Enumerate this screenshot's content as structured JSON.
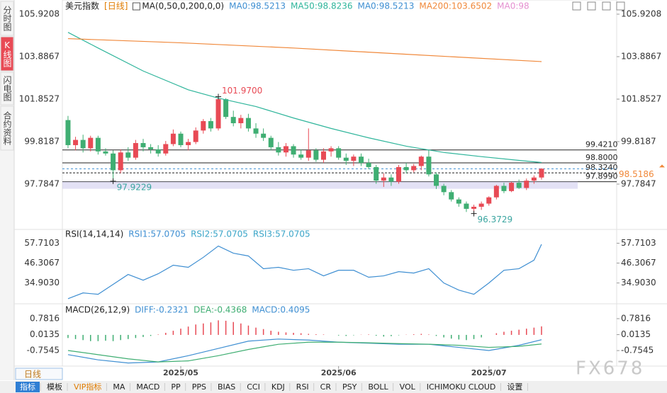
{
  "sidebar": {
    "tabs": [
      "分时图",
      "K线图",
      "闪电图",
      "合约资料"
    ],
    "active": 1
  },
  "period_label": "日线",
  "toolbar": {
    "items": [
      "指标",
      "模板",
      "VIP指标",
      "MA",
      "MACD",
      "PP",
      "PPS",
      "BIAS",
      "CCI",
      "KDJ",
      "RSI",
      "CR",
      "PSY",
      "BOLL",
      "VOL",
      "ICHIMOKU CLOUD",
      "设置"
    ],
    "active": 0,
    "vip": 2
  },
  "watermark": "FX678",
  "chart_data": [
    {
      "type": "candlestick",
      "title": "美元指数",
      "period": "[日线]",
      "indicator": "MA(0,50,0,200,0,0)",
      "legend": [
        {
          "text": "MA0:98.5213",
          "color": "#3f8fd2"
        },
        {
          "text": "MA50:98.8236",
          "color": "#2fb59b"
        },
        {
          "text": "MA0:98.5213",
          "color": "#3f8fd2"
        },
        {
          "text": "MA200:103.6502",
          "color": "#f0883a"
        },
        {
          "text": "MA0:98",
          "color": "#e58fd0"
        }
      ],
      "up_color": "#e84a55",
      "down_color": "#3fae72",
      "candles": [
        [
          100.85,
          101.05,
          99.5,
          99.65
        ],
        [
          99.65,
          100.05,
          99.4,
          99.9
        ],
        [
          99.9,
          100.15,
          99.3,
          99.5
        ],
        [
          99.5,
          100.1,
          99.35,
          100.0
        ],
        [
          100.0,
          100.1,
          99.2,
          99.35
        ],
        [
          99.35,
          99.5,
          99.15,
          99.25
        ],
        [
          99.25,
          99.4,
          97.9229,
          98.45
        ],
        [
          98.45,
          99.45,
          98.3,
          99.3
        ],
        [
          99.3,
          99.55,
          98.9,
          99.05
        ],
        [
          99.05,
          99.9,
          98.95,
          99.75
        ],
        [
          99.75,
          99.95,
          99.35,
          99.55
        ],
        [
          99.55,
          99.7,
          99.25,
          99.45
        ],
        [
          99.45,
          99.65,
          99.1,
          99.25
        ],
        [
          99.25,
          99.85,
          99.15,
          99.7
        ],
        [
          99.7,
          100.4,
          99.6,
          100.2
        ],
        [
          100.2,
          100.3,
          99.55,
          99.65
        ],
        [
          99.65,
          99.95,
          99.4,
          99.8
        ],
        [
          99.8,
          100.5,
          99.7,
          100.35
        ],
        [
          100.35,
          100.9,
          100.2,
          100.8
        ],
        [
          100.8,
          100.95,
          100.3,
          100.45
        ],
        [
          100.45,
          101.97,
          100.35,
          101.85
        ],
        [
          101.85,
          101.9,
          100.9,
          101.0
        ],
        [
          101.0,
          101.3,
          100.55,
          100.7
        ],
        [
          100.7,
          101.1,
          100.45,
          100.95
        ],
        [
          100.95,
          101.15,
          100.3,
          100.45
        ],
        [
          100.45,
          100.7,
          100.0,
          100.2
        ],
        [
          100.2,
          100.45,
          99.85,
          100.0
        ],
        [
          100.0,
          100.1,
          99.4,
          99.55
        ],
        [
          99.55,
          99.8,
          99.15,
          99.3
        ],
        [
          99.3,
          99.75,
          99.1,
          99.6
        ],
        [
          99.6,
          99.7,
          99.05,
          99.2
        ],
        [
          99.2,
          99.45,
          98.95,
          99.05
        ],
        [
          99.05,
          100.45,
          98.9,
          99.4
        ],
        [
          99.4,
          99.5,
          98.85,
          98.95
        ],
        [
          98.95,
          99.5,
          98.8,
          99.35
        ],
        [
          99.35,
          99.6,
          99.1,
          99.5
        ],
        [
          99.5,
          99.6,
          98.95,
          99.05
        ],
        [
          99.05,
          99.25,
          98.7,
          98.9
        ],
        [
          98.9,
          99.2,
          98.65,
          99.1
        ],
        [
          99.1,
          99.25,
          98.65,
          98.8
        ],
        [
          98.8,
          99.0,
          98.5,
          98.6
        ],
        [
          98.6,
          98.7,
          97.8,
          97.95
        ],
        [
          97.95,
          98.3,
          97.65,
          98.1
        ],
        [
          98.1,
          98.25,
          97.7,
          97.9
        ],
        [
          97.9,
          98.7,
          97.8,
          98.6
        ],
        [
          98.6,
          98.8,
          98.3,
          98.45
        ],
        [
          98.45,
          98.75,
          98.35,
          98.65
        ],
        [
          98.65,
          99.15,
          98.45,
          99.1
        ],
        [
          99.1,
          99.42,
          98.15,
          98.25
        ],
        [
          98.25,
          98.35,
          97.55,
          97.7
        ],
        [
          97.7,
          97.8,
          97.25,
          97.4
        ],
        [
          97.4,
          97.5,
          96.95,
          97.05
        ],
        [
          97.05,
          97.15,
          96.7,
          96.85
        ],
        [
          96.85,
          96.95,
          96.45,
          96.6
        ],
        [
          96.6,
          96.8,
          96.3729,
          96.7
        ],
        [
          96.7,
          96.95,
          96.55,
          96.85
        ],
        [
          96.85,
          97.2,
          96.75,
          97.15
        ],
        [
          97.15,
          97.75,
          97.05,
          97.7
        ],
        [
          97.7,
          97.85,
          97.35,
          97.45
        ],
        [
          97.45,
          97.9,
          97.4,
          97.85
        ],
        [
          97.85,
          98.0,
          97.55,
          97.6
        ],
        [
          97.6,
          98.05,
          97.5,
          97.95
        ],
        [
          97.95,
          98.2,
          97.8,
          98.1
        ],
        [
          98.1,
          98.55,
          98.0,
          98.52
        ]
      ],
      "series": [
        {
          "color": "#2fb59b",
          "x": [
            0,
            4,
            10,
            16,
            20,
            25,
            30,
            35,
            40,
            45,
            50,
            55,
            60,
            63
          ],
          "values": [
            105.05,
            104.3,
            103.2,
            102.3,
            101.9,
            101.5,
            100.95,
            100.45,
            100.0,
            99.6,
            99.3,
            99.1,
            98.92,
            98.82
          ]
        },
        {
          "color": "#f0883a",
          "x": [
            0,
            15,
            30,
            45,
            63
          ],
          "values": [
            104.75,
            104.55,
            104.3,
            104.0,
            103.65
          ]
        }
      ],
      "xlim": [
        -0.75,
        73
      ],
      "ylim": [
        95.75,
        106.26
      ],
      "yticks": [
        105.9208,
        103.8867,
        101.8527,
        99.8187,
        97.7847
      ],
      "levels": [
        {
          "value": 99.421,
          "label": "99.4210"
        },
        {
          "value": 98.8,
          "label": "98.8000"
        },
        {
          "value": 98.324,
          "label": "98.3240",
          "dashed": true
        },
        {
          "value": 97.899,
          "label": "97.8990"
        }
      ],
      "last_price": 98.5186,
      "last_color": "#f0883a",
      "annotations": [
        {
          "label": "101.9700",
          "x": 20,
          "y": 101.97,
          "color": "#e84a55",
          "pos": "above"
        },
        {
          "label": "97.9229",
          "x": 6,
          "y": 97.9229,
          "color": "#3aa5a0",
          "pos": "below"
        },
        {
          "label": "96.3729",
          "x": 54,
          "y": 96.3729,
          "color": "#3aa5a0",
          "pos": "below"
        }
      ]
    },
    {
      "type": "line",
      "title": "RSI(14,14,14)",
      "legend": [
        {
          "text": "RSI1:57.0705",
          "color": "#3f8fd2"
        },
        {
          "text": "RSI2:57.0705",
          "color": "#3aa5c8"
        },
        {
          "text": "RSI3:57.0705",
          "color": "#3aa5c8"
        }
      ],
      "x": [
        0,
        2,
        4,
        6,
        8,
        10,
        12,
        14,
        16,
        18,
        20,
        22,
        24,
        26,
        28,
        30,
        32,
        34,
        36,
        38,
        40,
        42,
        44,
        46,
        48,
        50,
        52,
        54,
        56,
        58,
        60,
        62,
        63
      ],
      "series": [
        {
          "color": "#3f8fd2",
          "values": [
            25.9,
            29.2,
            28.4,
            34.1,
            39.8,
            36.5,
            40.2,
            45.1,
            43.9,
            49.6,
            56.1,
            52.0,
            50.4,
            43.1,
            43.9,
            42.2,
            43.1,
            39.0,
            42.2,
            42.2,
            38.2,
            39.0,
            41.4,
            40.6,
            43.1,
            34.9,
            30.8,
            28.4,
            34.9,
            42.2,
            43.1,
            48.0,
            57.07
          ]
        }
      ],
      "xlim": [
        -0.75,
        73
      ],
      "ylim": [
        25,
        64
      ],
      "yticks": [
        57.7103,
        46.3067,
        {
          "value": 34.903,
          "label": "34.9030"
        }
      ]
    },
    {
      "type": "macd",
      "title": "MACD(26,12,9)",
      "legend": [
        {
          "text": "DIFF:-0.2321",
          "color": "#3f8fd2"
        },
        {
          "text": "DEA:-0.4368",
          "color": "#3fae72"
        },
        {
          "text": "MACD:0.4095",
          "color": "#3f8fd2"
        }
      ],
      "up_color": "#e84a55",
      "down_color": "#3fae72",
      "histogram": [
        -0.15,
        -0.2,
        -0.25,
        -0.3,
        -0.3,
        -0.28,
        -0.3,
        -0.25,
        -0.2,
        -0.15,
        -0.1,
        -0.05,
        0.02,
        0.1,
        0.2,
        0.3,
        0.4,
        0.5,
        0.55,
        0.6,
        0.7,
        0.68,
        0.62,
        0.55,
        0.45,
        0.35,
        0.28,
        0.2,
        0.15,
        0.12,
        0.1,
        0.08,
        0.05,
        0.03,
        0.02,
        0.0,
        -0.03,
        -0.05,
        -0.02,
        0.01,
        0.02,
        -0.04,
        -0.08,
        -0.06,
        -0.02,
        0.01,
        0.03,
        0.05,
        0.02,
        -0.05,
        -0.12,
        -0.18,
        -0.22,
        -0.25,
        -0.2,
        -0.12,
        0.0,
        0.08,
        0.15,
        0.2,
        0.25,
        0.3,
        0.35,
        0.4095
      ],
      "series": [
        {
          "color": "#3f8fd2",
          "x": [
            0,
            4,
            8,
            12,
            16,
            20,
            24,
            28,
            32,
            36,
            40,
            44,
            48,
            52,
            56,
            60,
            63
          ],
          "values": [
            -0.95,
            -1.2,
            -1.35,
            -1.3,
            -1.0,
            -0.65,
            -0.3,
            -0.2,
            -0.25,
            -0.35,
            -0.4,
            -0.45,
            -0.45,
            -0.6,
            -0.75,
            -0.5,
            -0.2321
          ]
        },
        {
          "color": "#3fae72",
          "x": [
            0,
            4,
            8,
            12,
            16,
            20,
            24,
            28,
            32,
            36,
            40,
            44,
            48,
            52,
            56,
            60,
            63
          ],
          "values": [
            -0.75,
            -0.95,
            -1.15,
            -1.3,
            -1.25,
            -1.0,
            -0.7,
            -0.45,
            -0.35,
            -0.35,
            -0.38,
            -0.42,
            -0.45,
            -0.5,
            -0.6,
            -0.55,
            -0.4368
          ]
        }
      ],
      "xlim": [
        -0.75,
        73
      ],
      "ylim": [
        -1.5,
        1.36
      ],
      "yticks": [
        0.7816,
        0.0135,
        -0.7545
      ],
      "xticks": [
        {
          "value": 15,
          "label": "2025/05"
        },
        {
          "value": 36,
          "label": "2025/06"
        },
        {
          "value": 56,
          "label": "2025/07"
        }
      ]
    }
  ]
}
